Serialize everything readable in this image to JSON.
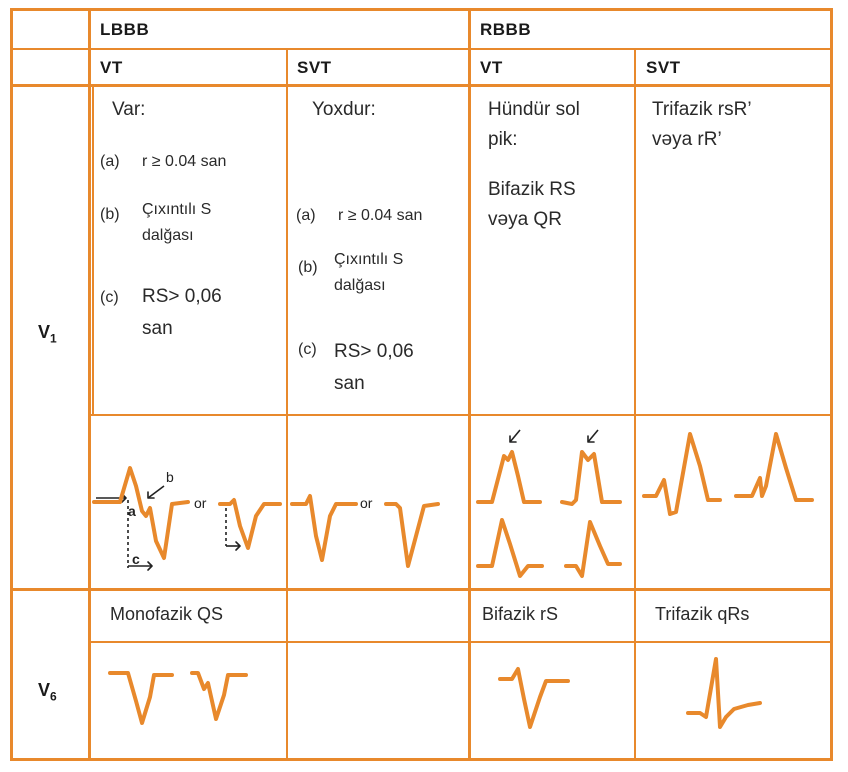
{
  "header": {
    "lbbb": "LBBB",
    "rbbb": "RBBB",
    "vt_1": "VT",
    "svt_1": "SVT",
    "vt_2": "VT",
    "svt_2": "SVT"
  },
  "leads": {
    "v1": "V",
    "v1_sub": "1",
    "v6": "V",
    "v6_sub": "6"
  },
  "lbbb_vt": {
    "title": "Var:",
    "items": [
      {
        "mark": "(a)",
        "text": "r ≥ 0.04  san"
      },
      {
        "mark": "(b)",
        "text": "Çıxıntılı S"
      },
      {
        "mark": "",
        "text": "dalğası"
      },
      {
        "mark": "(c)",
        "text": "RS> 0,06"
      },
      {
        "mark": "",
        "text": "san"
      }
    ]
  },
  "lbbb_svt": {
    "title": "Yoxdur:",
    "items": [
      {
        "mark": "(a)",
        "text": "r ≥ 0.04  san"
      },
      {
        "mark": "(b)",
        "text": "Çıxıntılı S"
      },
      {
        "mark": "",
        "text": "dalğası"
      },
      {
        "mark": "(c)",
        "text": "RS> 0,06"
      },
      {
        "mark": "",
        "text": "san"
      }
    ]
  },
  "rbbb_vt": {
    "line1": "Hündür sol",
    "line2": "pik:",
    "line3": "Bifazik RS",
    "line4": "vəya QR"
  },
  "rbbb_svt": {
    "line1": "Trifazik rsR’",
    "line2": "vəya rR’"
  },
  "waveform_labels": {
    "a": "a",
    "b": "b",
    "c": "c",
    "or1": "or",
    "or2": "or"
  },
  "v6_row": {
    "lbbb_vt": "Monofazik QS",
    "rbbb_vt": "Bifazik rS",
    "rbbb_svt": "Trifazik qRs"
  },
  "colors": {
    "accent": "#e8892c"
  }
}
